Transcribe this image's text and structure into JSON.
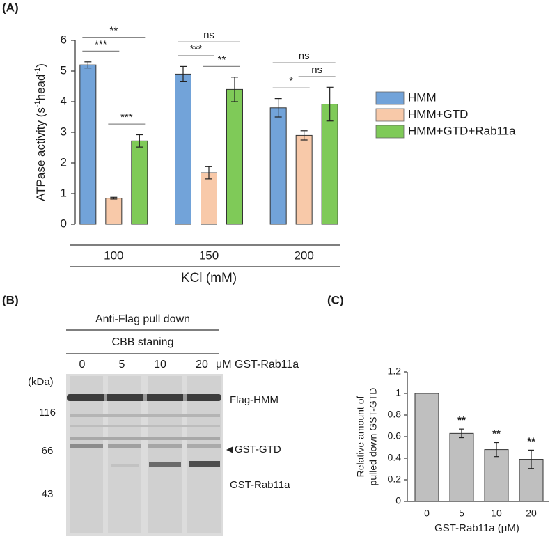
{
  "chart_data": [
    {
      "type": "grouped-bar",
      "panel": "(A)",
      "ylabel": [
        "ATPase activity (s",
        "-1",
        "head",
        "-1",
        ")"
      ],
      "ylabel_superscript": [
        false,
        true,
        false,
        true,
        false
      ],
      "xlabel": "KCl (mM)",
      "categories": [
        "100",
        "150",
        "200"
      ],
      "series": [
        {
          "name": "HMM",
          "color": "#72a3d9",
          "values": [
            5.2,
            4.9,
            3.8
          ],
          "errors": [
            0.1,
            0.25,
            0.3
          ]
        },
        {
          "name": "HMM+GTD",
          "color": "#f8c9a9",
          "values": [
            0.85,
            1.68,
            2.9
          ],
          "errors": [
            0.03,
            0.2,
            0.15
          ]
        },
        {
          "name": "HMM+GTD+Rab11a",
          "color": "#7fca58",
          "values": [
            2.72,
            4.4,
            3.92
          ],
          "errors": [
            0.2,
            0.4,
            0.55
          ]
        }
      ],
      "ylim": [
        0,
        6
      ],
      "yticks": [
        0,
        1,
        2,
        3,
        4,
        5,
        6
      ],
      "significance": [
        {
          "category": 0,
          "series": [
            0,
            1
          ],
          "label": "***"
        },
        {
          "category": 0,
          "series": [
            1,
            2
          ],
          "label": "***"
        },
        {
          "category": 0,
          "series": [
            0,
            2
          ],
          "label": "**"
        },
        {
          "category": 1,
          "series": [
            0,
            1
          ],
          "label": "***"
        },
        {
          "category": 1,
          "series": [
            1,
            2
          ],
          "label": "**"
        },
        {
          "category": 1,
          "series": [
            0,
            2
          ],
          "label": "ns"
        },
        {
          "category": 2,
          "series": [
            0,
            1
          ],
          "label": "*"
        },
        {
          "category": 2,
          "series": [
            1,
            2
          ],
          "label": "ns"
        },
        {
          "category": 2,
          "series": [
            0,
            2
          ],
          "label": "ns"
        }
      ]
    },
    {
      "type": "bar",
      "panel": "(C)",
      "ylabel": [
        "Relative amount of",
        "pulled down GST-GTD"
      ],
      "xlabel": "GST-Rab11a (μM)",
      "categories": [
        "0",
        "5",
        "10",
        "20"
      ],
      "values": [
        1,
        0.63,
        0.48,
        0.39
      ],
      "errors": [
        null,
        0.04,
        0.065,
        0.085
      ],
      "significance": [
        null,
        "**",
        "**",
        "**"
      ],
      "color": "#bfbfbf",
      "ylim": [
        0,
        1.2
      ],
      "yticks": [
        0,
        0.2,
        0.4,
        0.6,
        0.8,
        1,
        1.2
      ]
    }
  ],
  "gel": {
    "panel": "(B)",
    "header": "Anti-Flag pull down",
    "subheader": "CBB staning",
    "lanes": [
      "0",
      "5",
      "10",
      "20"
    ],
    "lane_unit": "μM GST-Rab11a",
    "marker_unit": "(kDa)",
    "markers": [
      "116",
      "66",
      "43"
    ],
    "bands": [
      "Flag-HMM",
      "GST-GTD",
      "GST-Rab11a"
    ]
  }
}
